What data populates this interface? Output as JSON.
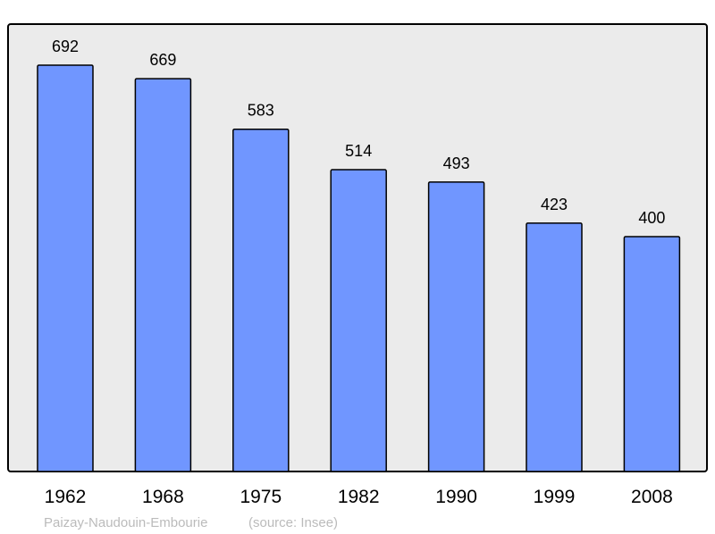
{
  "chart_data": {
    "type": "bar",
    "categories": [
      "1962",
      "1968",
      "1975",
      "1982",
      "1990",
      "1999",
      "2008"
    ],
    "values": [
      692,
      669,
      583,
      514,
      493,
      423,
      400
    ],
    "title": "",
    "xlabel": "",
    "ylabel": "",
    "ylim": [
      0,
      762
    ],
    "grid": false,
    "data_labels": true,
    "colors": {
      "bar": "#7096ff",
      "background": "#ebebeb",
      "border": "#000000"
    }
  },
  "footer": {
    "place": "Paizay-Naudouin-Embourie",
    "source": "(source: Insee)"
  }
}
